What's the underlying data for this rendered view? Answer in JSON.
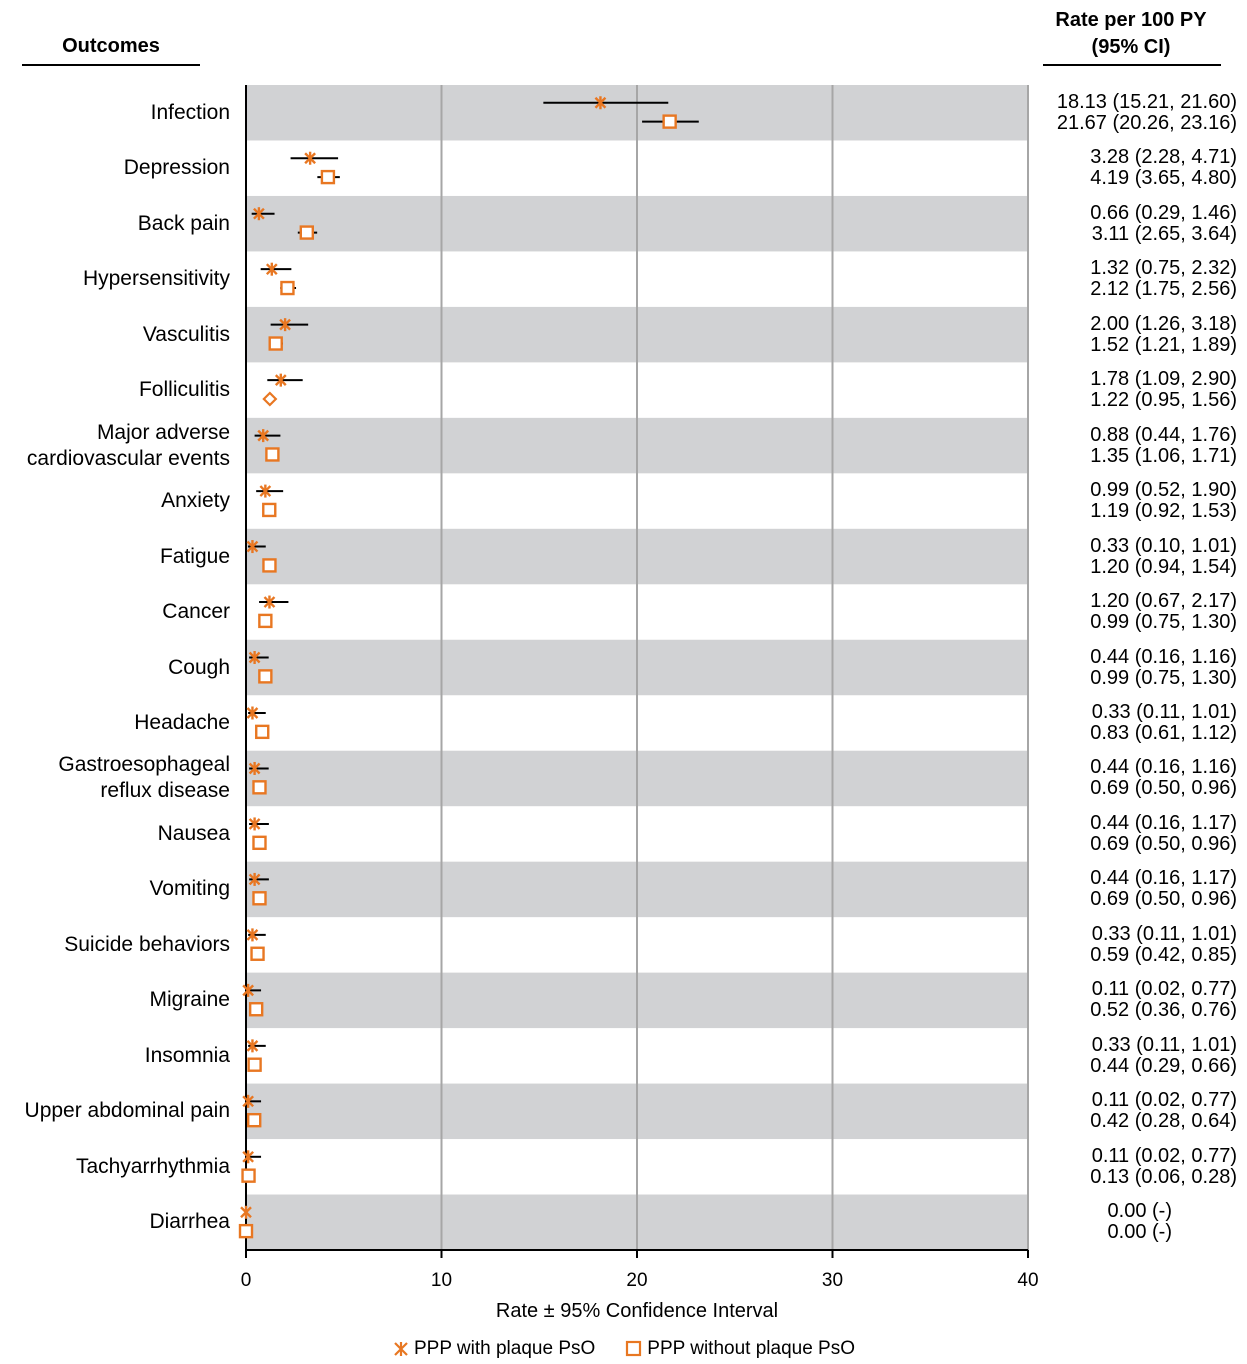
{
  "header": {
    "outcomes_label": "Outcomes",
    "rate_label_line1": "Rate per 100 PY",
    "rate_label_line2": "(95% CI)"
  },
  "colors": {
    "orange": "#e87722",
    "band": "#d1d2d4",
    "grid": "#a6a6a6"
  },
  "chart_data": {
    "type": "scatter",
    "xlabel": "Rate ± 95% Confidence Interval",
    "xlim": [
      0,
      40
    ],
    "xticks": [
      "0",
      "10",
      "20",
      "30",
      "40"
    ],
    "series_names": [
      "PPP with plaque PsO",
      "PPP without plaque PsO"
    ],
    "rows": [
      {
        "outcome": [
          "Infection"
        ],
        "with": [
          18.13,
          15.21,
          21.6
        ],
        "without": [
          21.67,
          20.26,
          23.16
        ],
        "rate_with": "18.13 (15.21, 21.60)",
        "rate_without": "21.67 (20.26, 23.16)"
      },
      {
        "outcome": [
          "Depression"
        ],
        "with": [
          3.28,
          2.28,
          4.71
        ],
        "without": [
          4.19,
          3.65,
          4.8
        ],
        "rate_with": "3.28 (2.28, 4.71)",
        "rate_without": "4.19 (3.65, 4.80)"
      },
      {
        "outcome": [
          "Back pain"
        ],
        "with": [
          0.66,
          0.29,
          1.46
        ],
        "without": [
          3.11,
          2.65,
          3.64
        ],
        "rate_with": "0.66 (0.29, 1.46)",
        "rate_without": "3.11 (2.65, 3.64)"
      },
      {
        "outcome": [
          "Hypersensitivity"
        ],
        "with": [
          1.32,
          0.75,
          2.32
        ],
        "without": [
          2.12,
          1.75,
          2.56
        ],
        "rate_with": "1.32 (0.75, 2.32)",
        "rate_without": "2.12 (1.75, 2.56)"
      },
      {
        "outcome": [
          "Vasculitis"
        ],
        "with": [
          2.0,
          1.26,
          3.18
        ],
        "without": [
          1.52,
          1.21,
          1.89
        ],
        "rate_with": "2.00 (1.26, 3.18)",
        "rate_without": "1.52 (1.21, 1.89)"
      },
      {
        "outcome": [
          "Folliculitis"
        ],
        "with": [
          1.78,
          1.09,
          2.9
        ],
        "without": [
          1.22,
          0.95,
          1.56
        ],
        "rate_with": "1.78 (1.09, 2.90)",
        "rate_without": "1.22 (0.95, 1.56)",
        "without_marker": "diamond"
      },
      {
        "outcome": [
          "Major adverse",
          "cardiovascular events"
        ],
        "with": [
          0.88,
          0.44,
          1.76
        ],
        "without": [
          1.35,
          1.06,
          1.71
        ],
        "rate_with": "0.88 (0.44, 1.76)",
        "rate_without": "1.35 (1.06, 1.71)"
      },
      {
        "outcome": [
          "Anxiety"
        ],
        "with": [
          0.99,
          0.52,
          1.9
        ],
        "without": [
          1.19,
          0.92,
          1.53
        ],
        "rate_with": "0.99 (0.52, 1.90)",
        "rate_without": "1.19 (0.92, 1.53)"
      },
      {
        "outcome": [
          "Fatigue"
        ],
        "with": [
          0.33,
          0.1,
          1.01
        ],
        "without": [
          1.2,
          0.94,
          1.54
        ],
        "rate_with": "0.33 (0.10, 1.01)",
        "rate_without": "1.20 (0.94, 1.54)"
      },
      {
        "outcome": [
          "Cancer"
        ],
        "with": [
          1.2,
          0.67,
          2.17
        ],
        "without": [
          0.99,
          0.75,
          1.3
        ],
        "rate_with": "1.20 (0.67, 2.17)",
        "rate_without": "0.99 (0.75, 1.30)"
      },
      {
        "outcome": [
          "Cough"
        ],
        "with": [
          0.44,
          0.16,
          1.16
        ],
        "without": [
          0.99,
          0.75,
          1.3
        ],
        "rate_with": "0.44 (0.16, 1.16)",
        "rate_without": "0.99 (0.75, 1.30)"
      },
      {
        "outcome": [
          "Headache"
        ],
        "with": [
          0.33,
          0.11,
          1.01
        ],
        "without": [
          0.83,
          0.61,
          1.12
        ],
        "rate_with": "0.33 (0.11, 1.01)",
        "rate_without": "0.83 (0.61, 1.12)"
      },
      {
        "outcome": [
          "Gastroesophageal",
          "reflux disease"
        ],
        "with": [
          0.44,
          0.16,
          1.16
        ],
        "without": [
          0.69,
          0.5,
          0.96
        ],
        "rate_with": "0.44 (0.16, 1.16)",
        "rate_without": "0.69 (0.50, 0.96)"
      },
      {
        "outcome": [
          "Nausea"
        ],
        "with": [
          0.44,
          0.16,
          1.17
        ],
        "without": [
          0.69,
          0.5,
          0.96
        ],
        "rate_with": "0.44 (0.16, 1.17)",
        "rate_without": "0.69 (0.50, 0.96)"
      },
      {
        "outcome": [
          "Vomiting"
        ],
        "with": [
          0.44,
          0.16,
          1.17
        ],
        "without": [
          0.69,
          0.5,
          0.96
        ],
        "rate_with": "0.44 (0.16, 1.17)",
        "rate_without": "0.69 (0.50, 0.96)"
      },
      {
        "outcome": [
          "Suicide behaviors"
        ],
        "with": [
          0.33,
          0.11,
          1.01
        ],
        "without": [
          0.59,
          0.42,
          0.85
        ],
        "rate_with": "0.33 (0.11, 1.01)",
        "rate_without": "0.59 (0.42, 0.85)"
      },
      {
        "outcome": [
          "Migraine"
        ],
        "with": [
          0.11,
          0.02,
          0.77
        ],
        "without": [
          0.52,
          0.36,
          0.76
        ],
        "rate_with": "0.11 (0.02, 0.77)",
        "rate_without": "0.52 (0.36, 0.76)"
      },
      {
        "outcome": [
          "Insomnia"
        ],
        "with": [
          0.33,
          0.11,
          1.01
        ],
        "without": [
          0.44,
          0.29,
          0.66
        ],
        "rate_with": "0.33 (0.11, 1.01)",
        "rate_without": "0.44 (0.29, 0.66)"
      },
      {
        "outcome": [
          "Upper abdominal pain"
        ],
        "with": [
          0.11,
          0.02,
          0.77
        ],
        "without": [
          0.42,
          0.28,
          0.64
        ],
        "rate_with": "0.11 (0.02, 0.77)",
        "rate_without": "0.42 (0.28, 0.64)"
      },
      {
        "outcome": [
          "Tachyarrhythmia"
        ],
        "with": [
          0.11,
          0.02,
          0.77
        ],
        "without": [
          0.13,
          0.06,
          0.28
        ],
        "rate_with": "0.11 (0.02, 0.77)",
        "rate_without": "0.13 (0.06, 0.28)"
      },
      {
        "outcome": [
          "Diarrhea"
        ],
        "with": [
          0.0,
          null,
          null
        ],
        "without": [
          0.0,
          null,
          null
        ],
        "rate_with": "0.00 (-)",
        "rate_without": "0.00 (-)"
      }
    ]
  }
}
